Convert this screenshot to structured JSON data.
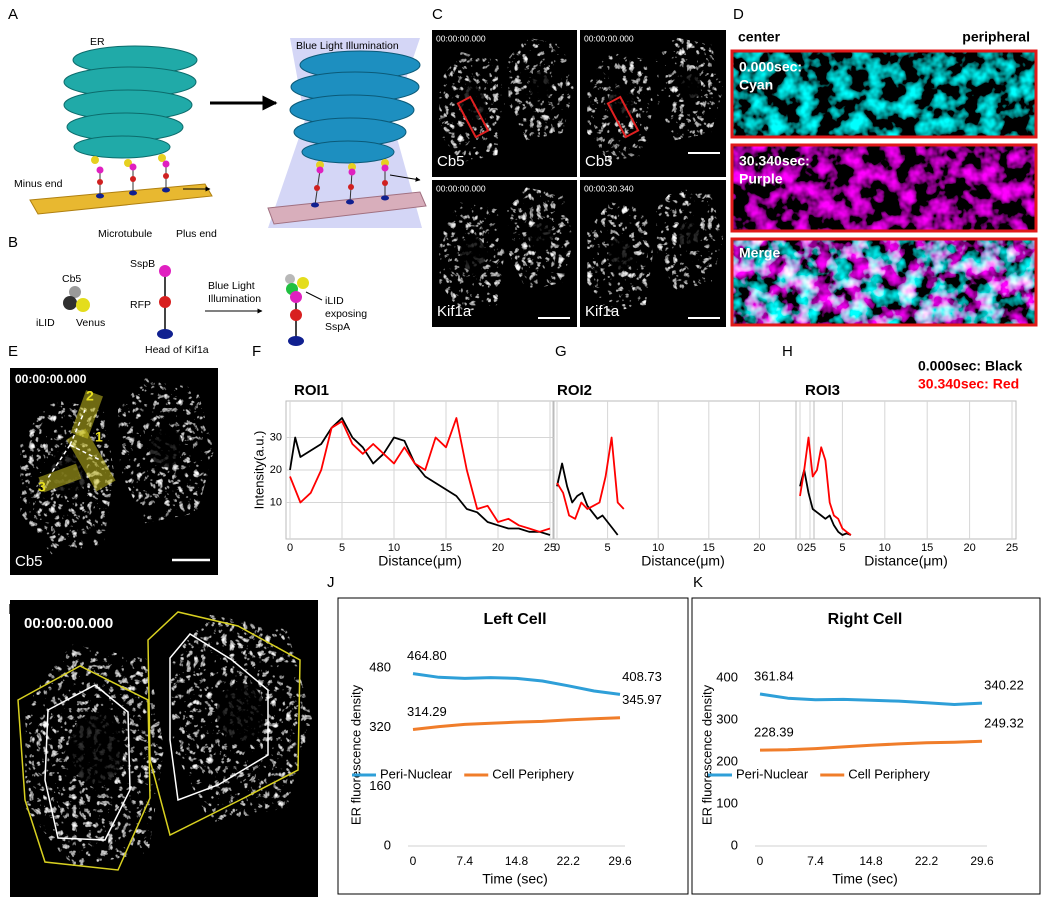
{
  "panel_labels": [
    "A",
    "B",
    "C",
    "D",
    "E",
    "F",
    "G",
    "H",
    "I",
    "J",
    "K"
  ],
  "schematic_a": {
    "er": "ER",
    "illumination": "Blue Light Illumination",
    "minus_end": "Minus end",
    "microtubule": "Microtubule",
    "plus_end": "Plus end"
  },
  "schematic_b": {
    "cb5": "Cb5",
    "ilid": "iLID",
    "venus": "Venus",
    "sspb": "SspB",
    "rfp": "RFP",
    "illumination": [
      "Blue Light",
      "Illumination"
    ],
    "head": "Head of Kif1a",
    "exposing": [
      "iLID",
      "exposing",
      "SspA"
    ]
  },
  "micrographs_c": [
    {
      "time": "00:00:00.000",
      "label": "Cb5"
    },
    {
      "time": "00:00:00.000",
      "label": "Cb5"
    },
    {
      "time": "00:00:00.000",
      "label": "Kif1a"
    },
    {
      "time": "00:00:30.340",
      "label": "Kif1a"
    }
  ],
  "panel_d": {
    "center": "center",
    "peripheral": "peripheral",
    "rows": [
      [
        "0.000sec:",
        "Cyan"
      ],
      [
        "30.340sec:",
        "Purple"
      ],
      [
        "Merge"
      ]
    ]
  },
  "panel_e": {
    "time": "00:00:00.000",
    "label": "Cb5",
    "rois": [
      "1",
      "2",
      "3"
    ]
  },
  "panel_i": {
    "time": "00:00:00.000"
  },
  "chart_data": [
    {
      "type": "line",
      "title": "ROI1",
      "xlabel": "Distance(μm)",
      "ylabel": "Intensity(a.u.)",
      "xlim": [
        0,
        25
      ],
      "ylim": [
        0,
        40
      ],
      "xticks": [
        0,
        5,
        10,
        15,
        20,
        25
      ],
      "yticks": [
        10,
        20,
        30
      ],
      "grid": true,
      "frame": true,
      "series": [
        {
          "color": "#000000",
          "x": [
            0,
            0.5,
            1,
            2,
            3,
            4,
            5,
            6,
            7,
            8,
            9,
            10,
            11,
            12,
            13,
            14,
            15,
            16,
            17,
            18,
            19,
            20,
            21,
            22,
            23,
            24,
            25
          ],
          "values": [
            20,
            30,
            24,
            26,
            28,
            33,
            36,
            30,
            27,
            22,
            25,
            30,
            29,
            22,
            18,
            16,
            14,
            12,
            8,
            7,
            4,
            3,
            2,
            2,
            1,
            1,
            0
          ]
        },
        {
          "color": "#ff0000",
          "x": [
            0,
            1,
            2,
            3,
            4,
            5,
            6,
            7,
            8,
            9,
            10,
            11,
            12,
            13,
            14,
            15,
            16,
            17,
            18,
            19,
            20,
            21,
            22,
            23,
            24,
            25
          ],
          "values": [
            18,
            10,
            13,
            20,
            33,
            35,
            28,
            25,
            28,
            25,
            22,
            27,
            22,
            20,
            30,
            27,
            36,
            20,
            8,
            9,
            4,
            5,
            3,
            2,
            1,
            2
          ]
        }
      ]
    },
    {
      "type": "line",
      "title": "ROI2",
      "xlabel": "Distance(μm)",
      "xlim": [
        0,
        25
      ],
      "ylim": [
        0,
        40
      ],
      "xticks": [
        0,
        5,
        10,
        15,
        20,
        25
      ],
      "grid": true,
      "frame": true,
      "series": [
        {
          "color": "#000000",
          "x": [
            0,
            0.5,
            1,
            1.5,
            2,
            2.5,
            3,
            3.5,
            4,
            4.5,
            5,
            5.5,
            6
          ],
          "values": [
            15,
            22,
            15,
            10,
            12,
            13,
            9,
            7,
            5,
            6,
            4,
            2,
            0
          ]
        },
        {
          "color": "#ff0000",
          "x": [
            0,
            0.6,
            1.2,
            1.8,
            2.4,
            3,
            3.6,
            4.2,
            4.8,
            5.4,
            6,
            6.6
          ],
          "values": [
            16,
            13,
            6,
            5,
            10,
            8,
            9,
            10,
            18,
            30,
            10,
            8
          ]
        }
      ]
    },
    {
      "type": "line",
      "title": "ROI3",
      "xlabel": "Distance(μm)",
      "xlim": [
        0,
        25
      ],
      "ylim": [
        0,
        40
      ],
      "xticks": [
        0,
        5,
        10,
        15,
        20,
        25
      ],
      "grid": true,
      "frame": true,
      "legend": "top-right",
      "series": [
        {
          "name": "0.000sec: Black",
          "color": "#000000",
          "x": [
            0,
            0.5,
            1,
            1.5,
            2,
            2.5,
            3,
            3.5,
            4,
            4.5,
            5,
            5.5,
            6
          ],
          "values": [
            15,
            20,
            13,
            8,
            7,
            6,
            5,
            6,
            3,
            1,
            0,
            0.5,
            0
          ]
        },
        {
          "name": "30.340sec: Red",
          "color": "#ff0000",
          "x": [
            0,
            0.5,
            1,
            1.5,
            2,
            2.5,
            3,
            3.5,
            4,
            4.5,
            5,
            5.5,
            6
          ],
          "values": [
            12,
            20,
            30,
            18,
            20,
            27,
            23,
            10,
            6,
            5,
            2,
            1,
            0
          ]
        }
      ]
    },
    {
      "type": "line",
      "title": "Left Cell",
      "xlabel": "Time (sec)",
      "ylabel": "ER fluorescence density",
      "x": [
        0,
        3.7,
        7.4,
        11.1,
        14.8,
        18.5,
        22.2,
        25.9,
        29.6
      ],
      "xlim": [
        0,
        29.6
      ],
      "ylim": [
        0,
        480
      ],
      "xticks": [
        0,
        7.4,
        14.8,
        22.2,
        29.6
      ],
      "yticks": [
        0,
        160,
        320,
        480
      ],
      "grid": false,
      "frame": false,
      "legend": "lower-left",
      "series": [
        {
          "name": "Peri-Nuclear",
          "color": "#2e9fd8",
          "values": [
            464.8,
            455,
            452,
            454,
            452,
            445,
            432,
            418,
            408.73
          ],
          "value_labels": [
            "464.80",
            null,
            null,
            null,
            null,
            null,
            null,
            null,
            "408.73"
          ]
        },
        {
          "name": "Cell Periphery",
          "color": "#f07d2a",
          "values": [
            314.29,
            322,
            328,
            331,
            334,
            336,
            340,
            343,
            345.97
          ],
          "value_labels": [
            "314.29",
            null,
            null,
            null,
            null,
            null,
            null,
            null,
            "345.97"
          ]
        }
      ]
    },
    {
      "type": "line",
      "title": "Right Cell",
      "xlabel": "Time (sec)",
      "ylabel": "ER fluorescence density",
      "x": [
        0,
        3.7,
        7.4,
        11.1,
        14.8,
        18.5,
        22.2,
        25.9,
        29.6
      ],
      "xlim": [
        0,
        29.6
      ],
      "ylim": [
        0,
        400
      ],
      "xticks": [
        0,
        7.4,
        14.8,
        22.2,
        29.6
      ],
      "yticks": [
        0,
        100,
        200,
        300,
        400
      ],
      "grid": false,
      "frame": false,
      "legend": "lower-left",
      "series": [
        {
          "name": "Peri-Nuclear",
          "color": "#2e9fd8",
          "values": [
            361.84,
            352,
            348,
            349,
            347,
            345,
            341,
            337,
            340.22
          ],
          "value_labels": [
            "361.84",
            null,
            null,
            null,
            null,
            null,
            null,
            null,
            "340.22"
          ]
        },
        {
          "name": "Cell Periphery",
          "color": "#f07d2a",
          "values": [
            228.39,
            229,
            232,
            236,
            240,
            243,
            246,
            247,
            249.32
          ],
          "value_labels": [
            "228.39",
            null,
            null,
            null,
            null,
            null,
            null,
            null,
            "249.32"
          ]
        }
      ]
    }
  ]
}
